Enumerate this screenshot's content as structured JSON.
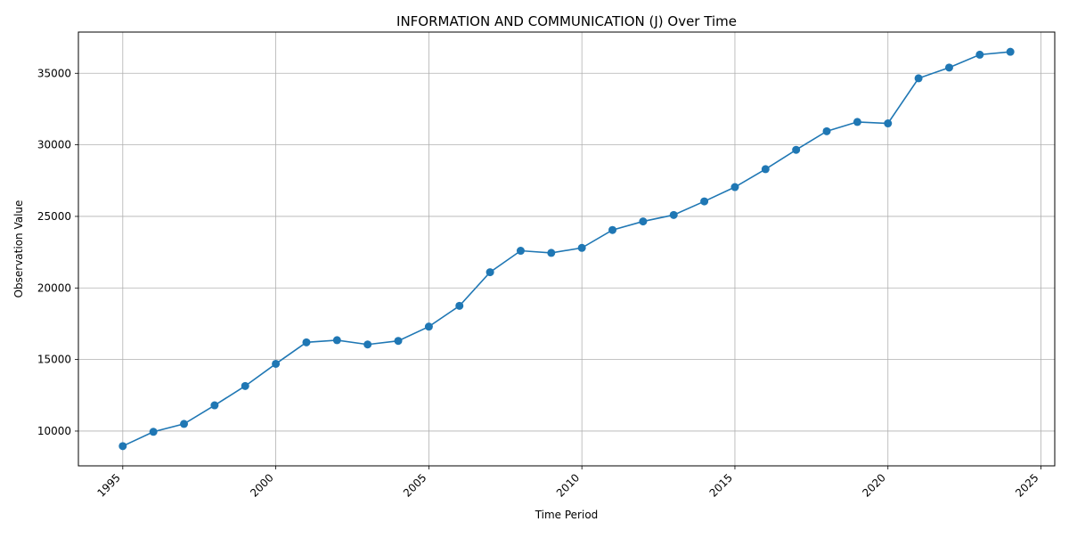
{
  "chart_data": {
    "type": "line",
    "title": "INFORMATION AND COMMUNICATION (J) Over Time",
    "xlabel": "Time Period",
    "ylabel": "Observation Value",
    "x": [
      1995,
      1996,
      1997,
      1998,
      1999,
      2000,
      2001,
      2002,
      2003,
      2004,
      2005,
      2006,
      2007,
      2008,
      2009,
      2010,
      2011,
      2012,
      2013,
      2014,
      2015,
      2016,
      2017,
      2018,
      2019,
      2020,
      2021,
      2022,
      2023,
      2024
    ],
    "series": [
      {
        "values": [
          8950,
          9950,
          10500,
          11800,
          13150,
          14700,
          16200,
          16350,
          16050,
          16300,
          17300,
          18750,
          21100,
          22600,
          22450,
          22800,
          24050,
          24650,
          25100,
          26050,
          27050,
          28300,
          29650,
          30950,
          31600,
          31500,
          34650,
          35400,
          36300,
          36500
        ],
        "color": "#1f77b4"
      }
    ],
    "xlim": [
      1993.55,
      1995.45
    ],
    "x_range": [
      1993.55,
      2025.45
    ],
    "ylim": [
      7570,
      37880
    ],
    "x_ticks": [
      1995,
      2000,
      2005,
      2010,
      2015,
      2020,
      2025
    ],
    "y_ticks": [
      10000,
      15000,
      20000,
      25000,
      30000,
      35000
    ],
    "x_tick_labels": [
      "1995",
      "2000",
      "2005",
      "2010",
      "2015",
      "2020",
      "2025"
    ],
    "y_tick_labels": [
      "10000",
      "15000",
      "20000",
      "25000",
      "30000",
      "35000"
    ],
    "grid": true,
    "marker": "circle"
  }
}
